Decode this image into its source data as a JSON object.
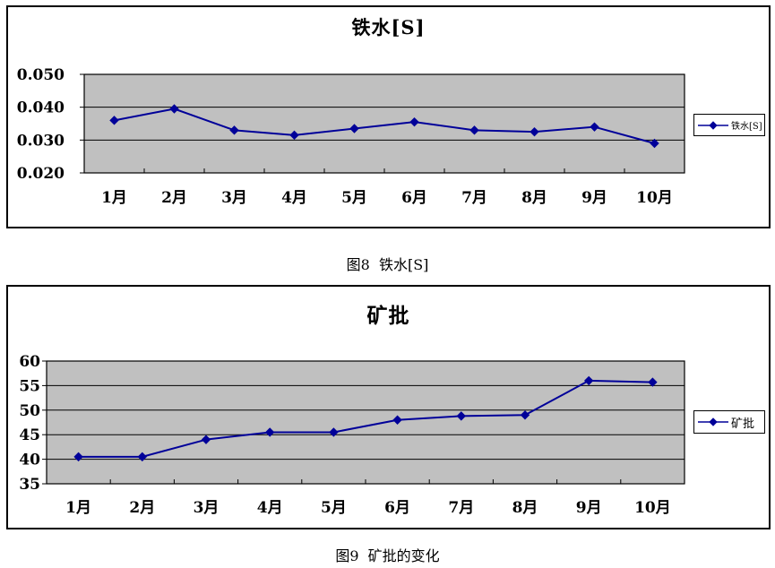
{
  "page": {
    "background": "#ffffff"
  },
  "colors": {
    "line": "#000099",
    "plot_bg": "#c0c0c0",
    "grid": "#000000",
    "text": "#000000"
  },
  "captions": [
    "图8  铁水[S]",
    "图9  矿批的变化"
  ],
  "chart_data": [
    {
      "type": "line",
      "title": "铁水[S]",
      "legend": "铁水[S]",
      "legend_position": "right",
      "marker": "diamond",
      "grid": "horizontal",
      "categories": [
        "1月",
        "2月",
        "3月",
        "4月",
        "5月",
        "6月",
        "7月",
        "8月",
        "9月",
        "10月"
      ],
      "values": [
        0.036,
        0.0395,
        0.033,
        0.0315,
        0.0335,
        0.0355,
        0.033,
        0.0325,
        0.034,
        0.029
      ],
      "xlabel": "",
      "ylabel": "",
      "ylim": [
        0.02,
        0.05
      ],
      "yticks": [
        0.02,
        0.03,
        0.04,
        0.05
      ],
      "ytick_labels": [
        "0.020",
        "0.030",
        "0.040",
        "0.050"
      ]
    },
    {
      "type": "line",
      "title": "矿批",
      "legend": "矿批",
      "legend_position": "right",
      "marker": "diamond",
      "grid": "horizontal",
      "categories": [
        "1月",
        "2月",
        "3月",
        "4月",
        "5月",
        "6月",
        "7月",
        "8月",
        "9月",
        "10月"
      ],
      "values": [
        40.5,
        40.5,
        44,
        45.5,
        45.5,
        48,
        48.8,
        49,
        56,
        55.7
      ],
      "xlabel": "",
      "ylabel": "",
      "ylim": [
        35,
        60
      ],
      "yticks": [
        35,
        40,
        45,
        50,
        55,
        60
      ],
      "ytick_labels": [
        "35",
        "40",
        "45",
        "50",
        "55",
        "60"
      ]
    }
  ]
}
